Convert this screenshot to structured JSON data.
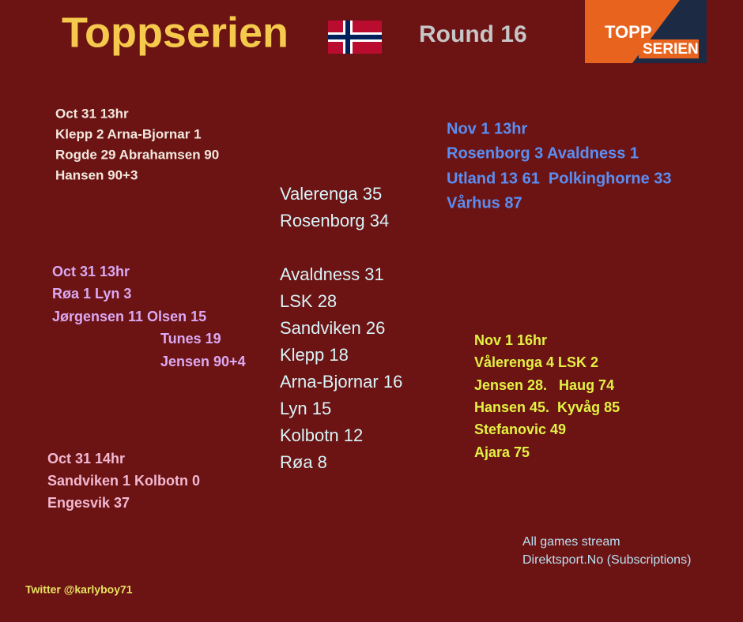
{
  "header": {
    "title": "Toppserien",
    "round": "Round 16",
    "logo": {
      "line1": "TOPP",
      "line2": "SERIEN"
    }
  },
  "matches": [
    {
      "lines": [
        "Oct 31 13hr",
        "Klepp 2 Arna-Bjornar 1",
        "Rogde 29 Abrahamsen 90",
        "Hansen 90+3"
      ]
    },
    {
      "lines": [
        "Nov 1 13hr",
        "Rosenborg 3 Avaldness 1",
        "Utland 13 61  Polkinghorne 33",
        "Vårhus 87"
      ]
    },
    {
      "lines": [
        "Oct 31 13hr",
        "Røa 1 Lyn 3",
        "Jørgensen 11 Olsen 15",
        "Tunes 19",
        "Jensen 90+4"
      ]
    },
    {
      "lines": [
        "Nov 1 16hr",
        "Vålerenga 4 LSK 2",
        "Jensen 28.   Haug 74",
        "Hansen 45.  Kyvåg 85",
        "Stefanovic 49",
        "Ajara 75"
      ]
    },
    {
      "lines": [
        "Oct 31 14hr",
        "Sandviken 1 Kolbotn 0",
        "Engesvik 37"
      ]
    }
  ],
  "standings": [
    "Valerenga 35",
    "Rosenborg 34",
    "Avaldness 31",
    "LSK 28",
    "Sandviken 26",
    "Klepp 18",
    "Arna-Bjornar 16",
    "Lyn 15",
    "Kolbotn 12",
    "Røa 8"
  ],
  "footer": {
    "stream": [
      "All games stream",
      "Direktsport.No (Subscriptions)"
    ],
    "twitter": "Twitter @karlyboy71"
  }
}
